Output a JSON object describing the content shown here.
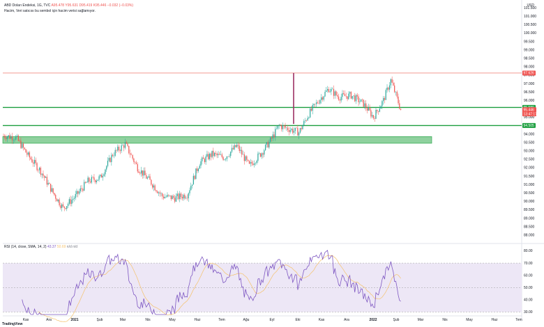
{
  "header": {
    "symbol_line": "ABD Doları Endeksi, 1G, TVC",
    "ohlc": {
      "o": "A95.478",
      "h": "Y95.631",
      "l": "D95.419",
      "c": "K95.446",
      "chg": "−0.032 (−0.03%)"
    },
    "notice": "Hacim, Veri satıcısı bu sembol için hacim verisi sağlamıyor.",
    "currency": "USD"
  },
  "rsi_header": {
    "label": "RSI (14, close, SMA, 14, 2)",
    "value_a": "43.37",
    "value_b": "50.69",
    "value_c": "n/d n/d"
  },
  "footer": {
    "logo_text": "TradingView"
  },
  "colors": {
    "up": "#26a69a",
    "down": "#ef5350",
    "level": "#1b9e3e",
    "zone": "#8fd19e",
    "resistance": "#f28b82",
    "spike": "#9c2f63",
    "rsi_line": "#7e57c2",
    "rsi_ma": "#f5c26b",
    "rsi_bg": "#ede7f6"
  },
  "chart_data": [
    {
      "type": "candlestick",
      "title": "ABD Doları Endeksi, 1G, TVC",
      "y_ticks": [
        "101.500",
        "101.000",
        "100.500",
        "100.000",
        "99.500",
        "99.000",
        "98.500",
        "98.000",
        "97.500",
        "97.000",
        "96.500",
        "96.000",
        "95.500",
        "95.000",
        "94.500",
        "94.000",
        "93.500",
        "93.000",
        "92.500",
        "92.000",
        "91.500",
        "91.000",
        "90.500",
        "90.000",
        "89.500",
        "89.000",
        "88.500",
        "88.000"
      ],
      "ylim": [
        87.7,
        101.8
      ],
      "x_labels": [
        "Kas",
        "Ara",
        "2021",
        "Şub",
        "Mar",
        "Nis",
        "May",
        "Haz",
        "Tem",
        "Ağu",
        "Eyl",
        "Eki",
        "Kas",
        "Ara",
        "2022",
        "Şub",
        "Mar",
        "Nis",
        "May",
        "Haz",
        "Tem"
      ],
      "levels": [
        {
          "value": 97.626,
          "label": "97.626",
          "style": "resistance"
        },
        {
          "value": 95.58,
          "label": "95.580",
          "style": "support"
        },
        {
          "value": 94.505,
          "label": "94.505",
          "style": "support"
        }
      ],
      "zone": {
        "from": 93.45,
        "to": 93.85
      },
      "last_price": {
        "value": 95.446,
        "label": "95.446",
        "countdown": "13:47:17"
      },
      "path_anchors": [
        {
          "i": 0,
          "v": 93.9
        },
        {
          "i": 10,
          "v": 93.8
        },
        {
          "i": 20,
          "v": 92.7
        },
        {
          "i": 30,
          "v": 91.8
        },
        {
          "i": 40,
          "v": 90.5
        },
        {
          "i": 48,
          "v": 89.6
        },
        {
          "i": 58,
          "v": 90.3
        },
        {
          "i": 68,
          "v": 91.2
        },
        {
          "i": 78,
          "v": 91.4
        },
        {
          "i": 88,
          "v": 92.8
        },
        {
          "i": 98,
          "v": 93.4
        },
        {
          "i": 108,
          "v": 92.0
        },
        {
          "i": 118,
          "v": 91.2
        },
        {
          "i": 128,
          "v": 90.3
        },
        {
          "i": 138,
          "v": 90.2
        },
        {
          "i": 148,
          "v": 90.4
        },
        {
          "i": 158,
          "v": 92.3
        },
        {
          "i": 168,
          "v": 92.8
        },
        {
          "i": 178,
          "v": 92.6
        },
        {
          "i": 188,
          "v": 93.3
        },
        {
          "i": 198,
          "v": 92.1
        },
        {
          "i": 208,
          "v": 92.9
        },
        {
          "i": 215,
          "v": 93.6
        },
        {
          "i": 222,
          "v": 94.5
        },
        {
          "i": 230,
          "v": 94.3
        },
        {
          "i": 238,
          "v": 94.1
        },
        {
          "i": 246,
          "v": 95.2
        },
        {
          "i": 254,
          "v": 96.0
        },
        {
          "i": 262,
          "v": 96.7
        },
        {
          "i": 270,
          "v": 96.2
        },
        {
          "i": 280,
          "v": 96.3
        },
        {
          "i": 290,
          "v": 95.8
        },
        {
          "i": 298,
          "v": 95.0
        },
        {
          "i": 306,
          "v": 96.0
        },
        {
          "i": 312,
          "v": 97.2
        },
        {
          "i": 320,
          "v": 95.45
        }
      ]
    },
    {
      "type": "line",
      "title": "RSI (14, close, SMA, 14, 2)",
      "y_ticks": [
        "80.00",
        "70.00",
        "60.00",
        "50.00",
        "40.00",
        "30.00"
      ],
      "ylim": [
        28,
        82
      ],
      "bands": {
        "upper": 70,
        "middle": 50,
        "lower": 30
      },
      "last_values": {
        "rsi": 43.37,
        "ma": 50.69
      }
    }
  ]
}
